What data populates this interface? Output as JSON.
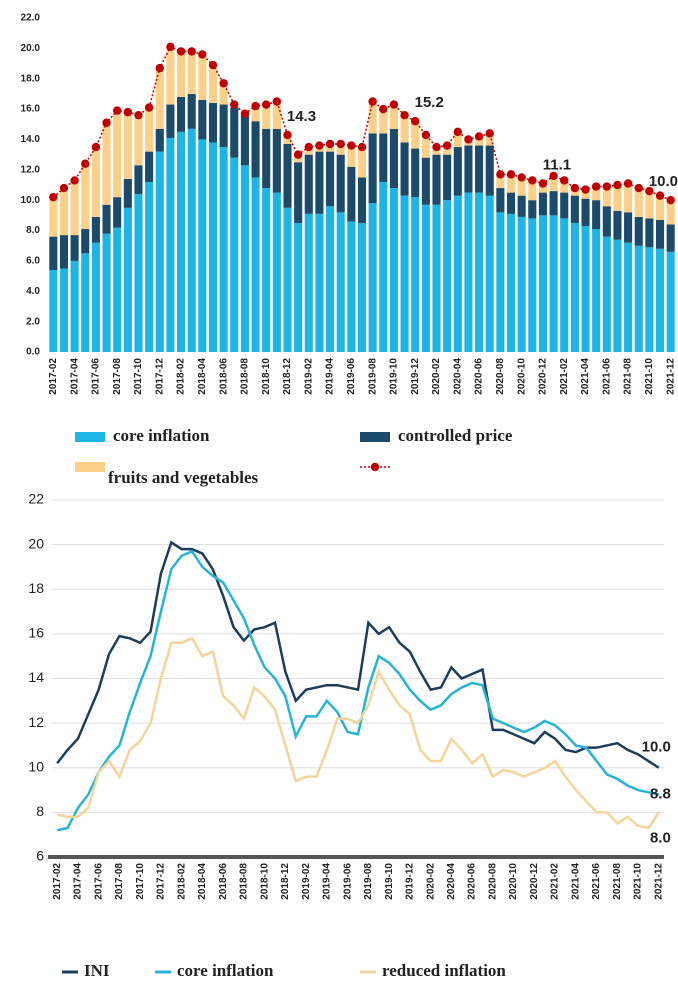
{
  "chart_data": [
    {
      "type": "bar",
      "stacked": true,
      "legend": "bottom",
      "grid": false,
      "categories": [
        "2017-02",
        null,
        "2017-04",
        null,
        "2017-06",
        null,
        "2017-08",
        null,
        "2017-10",
        null,
        "2017-12",
        null,
        "2018-02",
        null,
        "2018-04",
        null,
        "2018-06",
        null,
        "2018-08",
        null,
        "2018-10",
        null,
        "2018-12",
        null,
        "2019-02",
        null,
        "2019-04",
        null,
        "2019-06",
        null,
        "2019-08",
        null,
        "2019-10",
        null,
        "2019-12",
        null,
        "2020-02",
        null,
        "2020-04",
        null,
        "2020-06",
        null,
        "2020-08",
        null,
        "2020-10",
        null,
        "2020-12",
        null,
        "2021-02",
        null,
        "2021-04",
        null,
        "2021-06",
        null,
        "2021-08",
        null,
        "2021-10",
        null,
        "2021-12"
      ],
      "ylim": [
        0,
        22
      ],
      "yticks": [
        {
          "value": 0,
          "label": "0.0"
        },
        {
          "value": 2,
          "label": "2.0"
        },
        {
          "value": 4,
          "label": "4.0"
        },
        {
          "value": 6,
          "label": "6.0"
        },
        {
          "value": 8,
          "label": "8.0"
        },
        {
          "value": 10,
          "label": "10.0"
        },
        {
          "value": 12,
          "label": "12.0"
        },
        {
          "value": 14,
          "label": "14.0"
        },
        {
          "value": 16,
          "label": "16.0"
        },
        {
          "value": 18,
          "label": "18.0"
        },
        {
          "value": 20,
          "label": "20.0"
        },
        {
          "value": 22,
          "label": "22.0"
        }
      ],
      "series": [
        {
          "name": "core inflation",
          "color": "#1cb5e6",
          "values": [
            5.4,
            5.5,
            6.0,
            6.5,
            7.2,
            7.8,
            8.2,
            9.5,
            10.4,
            11.2,
            13.2,
            14.1,
            14.5,
            14.7,
            14.0,
            13.8,
            13.5,
            12.8,
            12.3,
            11.5,
            10.8,
            10.5,
            9.5,
            8.5,
            9.1,
            9.1,
            9.6,
            9.2,
            8.6,
            8.5,
            9.8,
            11.2,
            10.8,
            10.3,
            10.2,
            9.7,
            9.7,
            10.0,
            10.3,
            10.5,
            10.5,
            10.3,
            9.2,
            9.1,
            8.9,
            8.8,
            9.0,
            9.0,
            8.8,
            8.5,
            8.3,
            8.1,
            7.6,
            7.4,
            7.2,
            7.0,
            6.9,
            6.8,
            6.6
          ]
        },
        {
          "name": "controlled price",
          "color": "#1c4a6b",
          "values": [
            2.2,
            2.2,
            1.7,
            1.6,
            1.7,
            1.9,
            2.0,
            1.9,
            1.9,
            2.0,
            1.5,
            2.2,
            2.3,
            2.3,
            2.6,
            2.6,
            2.8,
            3.3,
            3.3,
            3.7,
            3.9,
            4.2,
            4.2,
            4.0,
            3.9,
            4.1,
            3.6,
            3.8,
            3.6,
            3.0,
            4.6,
            3.2,
            3.9,
            3.5,
            3.2,
            3.1,
            3.3,
            3.0,
            3.2,
            3.1,
            3.1,
            3.3,
            1.6,
            1.4,
            1.4,
            1.2,
            1.5,
            1.6,
            1.7,
            1.8,
            1.8,
            1.9,
            2.0,
            1.9,
            2.0,
            1.9,
            1.9,
            1.9,
            1.8
          ]
        },
        {
          "name": "fruits and vegetables",
          "color": "#fdd08a",
          "values": [
            2.6,
            3.1,
            3.6,
            4.3,
            4.6,
            5.4,
            5.7,
            4.4,
            3.3,
            2.9,
            4.0,
            3.8,
            3.0,
            2.8,
            3.0,
            2.5,
            1.4,
            0.2,
            0.1,
            1.0,
            1.6,
            1.8,
            0.6,
            0.5,
            0.5,
            0.4,
            0.5,
            0.7,
            1.4,
            2.0,
            2.1,
            1.6,
            1.6,
            1.8,
            1.8,
            1.5,
            0.5,
            0.6,
            1.0,
            0.4,
            0.6,
            0.8,
            0.9,
            1.2,
            1.2,
            1.3,
            0.6,
            1.0,
            0.8,
            0.5,
            0.6,
            0.9,
            1.3,
            1.7,
            1.9,
            1.9,
            1.8,
            1.6,
            1.6
          ]
        },
        {
          "type": "line",
          "color": "#c00000",
          "values": [
            10.2,
            10.8,
            11.3,
            12.4,
            13.5,
            15.1,
            15.9,
            15.8,
            15.6,
            16.1,
            18.7,
            20.1,
            19.8,
            19.8,
            19.6,
            18.9,
            17.7,
            16.3,
            15.7,
            16.2,
            16.3,
            16.5,
            14.3,
            13.0,
            13.5,
            13.6,
            13.7,
            13.7,
            13.6,
            13.5,
            16.5,
            16.0,
            16.3,
            15.6,
            15.2,
            14.3,
            13.5,
            13.6,
            14.5,
            14.0,
            14.2,
            14.4,
            11.7,
            11.7,
            11.5,
            11.3,
            11.1,
            11.6,
            11.3,
            10.8,
            10.7,
            10.9,
            10.9,
            11.0,
            11.1,
            10.8,
            10.6,
            10.3,
            10.0
          ]
        }
      ],
      "annotations": [
        {
          "text": "14.3",
          "category": "2018-12"
        },
        {
          "text": "15.2",
          "category": "2019-12"
        },
        {
          "text": "11.1",
          "category": "2020-12"
        },
        {
          "text": "10.0",
          "category": "2021-12"
        }
      ]
    },
    {
      "type": "line",
      "legend": "bottom",
      "grid": true,
      "categories": [
        "2017-02",
        null,
        "2017-04",
        null,
        "2017-06",
        null,
        "2017-08",
        null,
        "2017-10",
        null,
        "2017-12",
        null,
        "2018-02",
        null,
        "2018-04",
        null,
        "2018-06",
        null,
        "2018-08",
        null,
        "2018-10",
        null,
        "2018-12",
        null,
        "2019-02",
        null,
        "2019-04",
        null,
        "2019-06",
        null,
        "2019-08",
        null,
        "2019-10",
        null,
        "2019-12",
        null,
        "2020-02",
        null,
        "2020-04",
        null,
        "2020-06",
        null,
        "2020-08",
        null,
        "2020-10",
        null,
        "2020-12",
        null,
        "2021-02",
        null,
        "2021-04",
        null,
        "2021-06",
        null,
        "2021-08",
        null,
        "2021-10",
        null,
        "2021-12"
      ],
      "ylim": [
        6,
        22
      ],
      "yticks": [
        6,
        8,
        10,
        12,
        14,
        16,
        18,
        20,
        22
      ],
      "series": [
        {
          "name": "INI",
          "color": "#1e3d5a",
          "values": [
            10.2,
            10.8,
            11.3,
            12.4,
            13.5,
            15.1,
            15.9,
            15.8,
            15.6,
            16.1,
            18.7,
            20.1,
            19.8,
            19.8,
            19.6,
            18.9,
            17.7,
            16.3,
            15.7,
            16.2,
            16.3,
            16.5,
            14.3,
            13.0,
            13.5,
            13.6,
            13.7,
            13.7,
            13.6,
            13.5,
            16.5,
            16.0,
            16.3,
            15.6,
            15.2,
            14.3,
            13.5,
            13.6,
            14.5,
            14.0,
            14.2,
            14.4,
            11.7,
            11.7,
            11.5,
            11.3,
            11.1,
            11.6,
            11.3,
            10.8,
            10.7,
            10.9,
            10.9,
            11.0,
            11.1,
            10.8,
            10.6,
            10.3,
            10.0
          ]
        },
        {
          "name": "core inflation",
          "color": "#27b4d4",
          "values": [
            7.2,
            7.3,
            8.2,
            8.8,
            9.8,
            10.5,
            11.0,
            12.5,
            13.8,
            15.0,
            17.0,
            18.9,
            19.5,
            19.7,
            19.0,
            18.6,
            18.3,
            17.5,
            16.7,
            15.5,
            14.5,
            14.0,
            13.2,
            11.4,
            12.3,
            12.3,
            13.0,
            12.5,
            11.6,
            11.5,
            13.6,
            15.0,
            14.7,
            14.2,
            13.5,
            13.0,
            12.6,
            12.8,
            13.3,
            13.6,
            13.8,
            13.7,
            12.2,
            12.0,
            11.8,
            11.6,
            11.8,
            12.1,
            11.9,
            11.5,
            11.0,
            10.9,
            10.3,
            9.7,
            9.5,
            9.2,
            9.0,
            8.9,
            8.8
          ]
        },
        {
          "name": "reduced inflation",
          "color": "#f2d49c",
          "values": [
            7.9,
            7.8,
            7.8,
            8.2,
            9.8,
            10.3,
            9.6,
            10.8,
            11.2,
            12.0,
            14.0,
            15.6,
            15.6,
            15.8,
            15.0,
            15.2,
            13.2,
            12.8,
            12.2,
            13.6,
            13.2,
            12.6,
            11.0,
            9.4,
            9.6,
            9.6,
            10.8,
            12.2,
            12.2,
            12.0,
            12.8,
            14.3,
            13.5,
            12.8,
            12.4,
            10.8,
            10.3,
            10.3,
            11.3,
            10.8,
            10.2,
            10.6,
            9.6,
            9.9,
            9.8,
            9.6,
            9.8,
            10.0,
            10.3,
            9.6,
            9.0,
            8.5,
            8.0,
            8.0,
            7.5,
            7.8,
            7.4,
            7.3,
            8.0
          ]
        }
      ],
      "annotations": [
        {
          "text": "10.0",
          "category": "2021-12"
        },
        {
          "text": "8.8",
          "category": "2021-12"
        },
        {
          "text": "8.0",
          "category": "2021-12"
        }
      ]
    }
  ]
}
